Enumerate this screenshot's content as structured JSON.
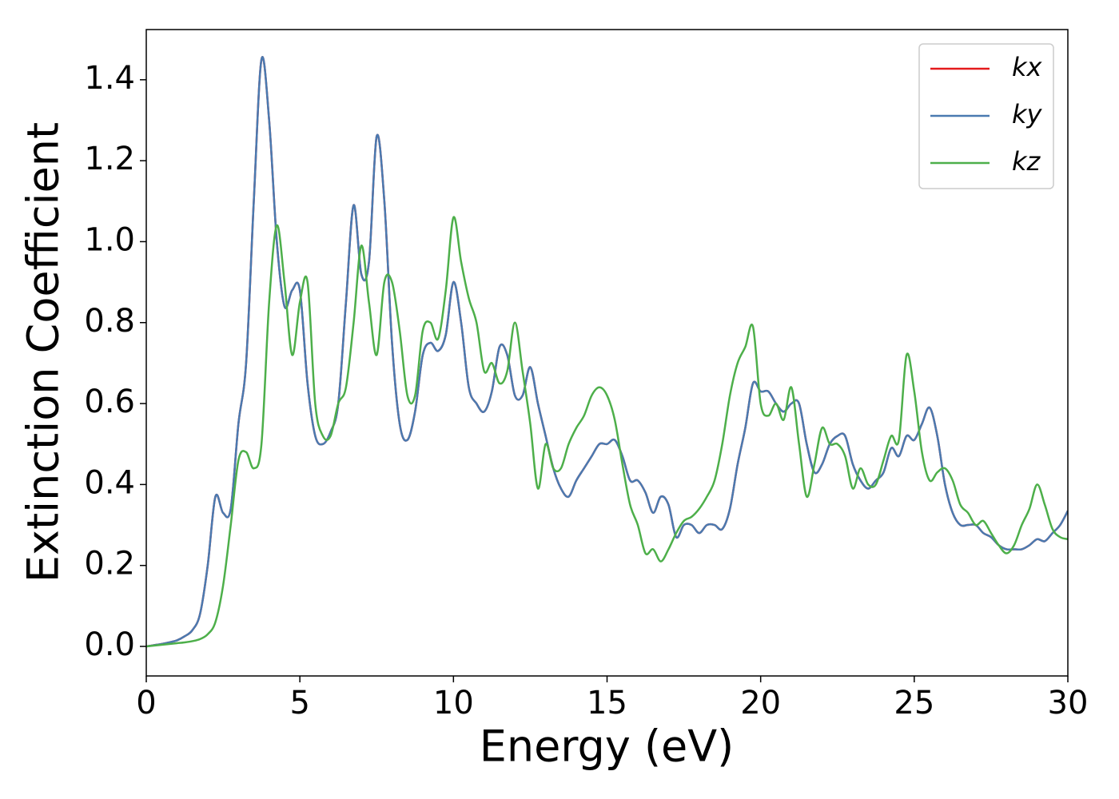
{
  "chart_data": {
    "type": "line",
    "xlabel": "Energy (eV)",
    "ylabel": "Extinction Coefficient",
    "x": [
      0,
      0.25,
      0.5,
      0.75,
      1,
      1.25,
      1.5,
      1.75,
      2,
      2.25,
      2.5,
      2.75,
      3,
      3.25,
      3.5,
      3.75,
      4,
      4.25,
      4.5,
      4.75,
      5,
      5.25,
      5.5,
      5.75,
      6,
      6.25,
      6.5,
      6.75,
      7,
      7.25,
      7.5,
      7.75,
      8,
      8.25,
      8.5,
      8.75,
      9,
      9.25,
      9.5,
      9.75,
      10,
      10.25,
      10.5,
      10.75,
      11,
      11.25,
      11.5,
      11.75,
      12,
      12.25,
      12.5,
      12.75,
      13,
      13.25,
      13.5,
      13.75,
      14,
      14.25,
      14.5,
      14.75,
      15,
      15.25,
      15.5,
      15.75,
      16,
      16.25,
      16.5,
      16.75,
      17,
      17.25,
      17.5,
      17.75,
      18,
      18.25,
      18.5,
      18.75,
      19,
      19.25,
      19.5,
      19.75,
      20,
      20.25,
      20.5,
      20.75,
      21,
      21.25,
      21.5,
      21.75,
      22,
      22.25,
      22.5,
      22.75,
      23,
      23.25,
      23.5,
      23.75,
      24,
      24.25,
      24.5,
      24.75,
      25,
      25.25,
      25.5,
      25.75,
      26,
      26.25,
      26.5,
      26.75,
      27,
      27.25,
      27.5,
      27.75,
      28,
      28.25,
      28.5,
      28.75,
      29,
      29.25,
      29.5,
      29.75,
      30
    ],
    "series": [
      {
        "name": "kx",
        "color": "#e41a1c",
        "values": [
          0,
          0.003,
          0.006,
          0.01,
          0.015,
          0.025,
          0.04,
          0.08,
          0.2,
          0.37,
          0.33,
          0.34,
          0.55,
          0.7,
          1.1,
          1.45,
          1.3,
          1.0,
          0.84,
          0.88,
          0.88,
          0.65,
          0.52,
          0.5,
          0.53,
          0.6,
          0.85,
          1.09,
          0.92,
          0.95,
          1.26,
          1.1,
          0.75,
          0.55,
          0.51,
          0.58,
          0.72,
          0.75,
          0.73,
          0.77,
          0.9,
          0.8,
          0.64,
          0.6,
          0.58,
          0.63,
          0.74,
          0.72,
          0.62,
          0.62,
          0.69,
          0.6,
          0.52,
          0.44,
          0.39,
          0.37,
          0.41,
          0.44,
          0.47,
          0.5,
          0.5,
          0.51,
          0.47,
          0.41,
          0.41,
          0.38,
          0.33,
          0.37,
          0.35,
          0.27,
          0.3,
          0.3,
          0.28,
          0.3,
          0.3,
          0.29,
          0.34,
          0.45,
          0.54,
          0.65,
          0.63,
          0.63,
          0.6,
          0.58,
          0.6,
          0.6,
          0.5,
          0.43,
          0.45,
          0.5,
          0.52,
          0.52,
          0.45,
          0.41,
          0.39,
          0.41,
          0.43,
          0.49,
          0.47,
          0.52,
          0.51,
          0.55,
          0.59,
          0.52,
          0.4,
          0.33,
          0.3,
          0.3,
          0.3,
          0.28,
          0.27,
          0.25,
          0.24,
          0.24,
          0.24,
          0.25,
          0.265,
          0.26,
          0.28,
          0.3,
          0.335
        ]
      },
      {
        "name": "ky",
        "color": "#4a7ab0",
        "values": [
          0,
          0.003,
          0.006,
          0.01,
          0.015,
          0.025,
          0.04,
          0.08,
          0.2,
          0.37,
          0.33,
          0.34,
          0.55,
          0.7,
          1.1,
          1.45,
          1.3,
          1.0,
          0.84,
          0.88,
          0.88,
          0.65,
          0.52,
          0.5,
          0.53,
          0.6,
          0.85,
          1.09,
          0.92,
          0.95,
          1.26,
          1.1,
          0.75,
          0.55,
          0.51,
          0.58,
          0.72,
          0.75,
          0.73,
          0.77,
          0.9,
          0.8,
          0.64,
          0.6,
          0.58,
          0.63,
          0.74,
          0.72,
          0.62,
          0.62,
          0.69,
          0.6,
          0.52,
          0.44,
          0.39,
          0.37,
          0.41,
          0.44,
          0.47,
          0.5,
          0.5,
          0.51,
          0.47,
          0.41,
          0.41,
          0.38,
          0.33,
          0.37,
          0.35,
          0.27,
          0.3,
          0.3,
          0.28,
          0.3,
          0.3,
          0.29,
          0.34,
          0.45,
          0.54,
          0.65,
          0.63,
          0.63,
          0.6,
          0.58,
          0.6,
          0.6,
          0.5,
          0.43,
          0.45,
          0.5,
          0.52,
          0.52,
          0.45,
          0.41,
          0.39,
          0.41,
          0.43,
          0.49,
          0.47,
          0.52,
          0.51,
          0.55,
          0.59,
          0.52,
          0.4,
          0.33,
          0.3,
          0.3,
          0.3,
          0.28,
          0.27,
          0.25,
          0.24,
          0.24,
          0.24,
          0.25,
          0.265,
          0.26,
          0.28,
          0.3,
          0.335
        ]
      },
      {
        "name": "kz",
        "color": "#4daf4a",
        "values": [
          0,
          0.002,
          0.004,
          0.006,
          0.008,
          0.01,
          0.013,
          0.018,
          0.03,
          0.06,
          0.15,
          0.3,
          0.46,
          0.48,
          0.44,
          0.5,
          0.85,
          1.04,
          0.9,
          0.72,
          0.85,
          0.9,
          0.6,
          0.52,
          0.52,
          0.6,
          0.64,
          0.8,
          0.99,
          0.85,
          0.72,
          0.9,
          0.9,
          0.78,
          0.62,
          0.62,
          0.78,
          0.8,
          0.76,
          0.88,
          1.06,
          0.95,
          0.86,
          0.8,
          0.68,
          0.7,
          0.65,
          0.68,
          0.8,
          0.68,
          0.55,
          0.39,
          0.5,
          0.44,
          0.44,
          0.5,
          0.54,
          0.57,
          0.62,
          0.64,
          0.62,
          0.56,
          0.45,
          0.35,
          0.3,
          0.23,
          0.24,
          0.21,
          0.24,
          0.28,
          0.31,
          0.32,
          0.34,
          0.37,
          0.41,
          0.5,
          0.62,
          0.7,
          0.74,
          0.79,
          0.6,
          0.57,
          0.6,
          0.56,
          0.64,
          0.5,
          0.37,
          0.45,
          0.54,
          0.5,
          0.5,
          0.47,
          0.39,
          0.44,
          0.4,
          0.4,
          0.46,
          0.52,
          0.51,
          0.72,
          0.63,
          0.48,
          0.41,
          0.43,
          0.44,
          0.41,
          0.35,
          0.33,
          0.3,
          0.31,
          0.28,
          0.25,
          0.23,
          0.25,
          0.3,
          0.34,
          0.4,
          0.35,
          0.29,
          0.27,
          0.265
        ]
      }
    ],
    "xlim": [
      0,
      30
    ],
    "xticks": [
      0,
      5,
      10,
      15,
      20,
      25,
      30
    ],
    "ylim": [
      -0.073,
      1.524
    ],
    "yticks": [
      {
        "value": 0,
        "label": "0.0"
      },
      0.2,
      0.4,
      0.6,
      0.8,
      {
        "value": 1,
        "label": "1.0"
      },
      1.2,
      1.4
    ],
    "legend": "upper right",
    "grid": false
  }
}
